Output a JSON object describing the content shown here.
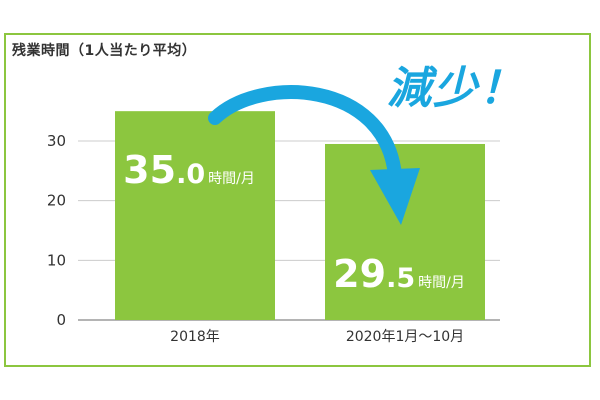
{
  "chart_data": {
    "type": "bar",
    "title": "残業時間（1人当たり平均）",
    "categories": [
      "2018年",
      "2020年1月〜10月"
    ],
    "values": [
      35.0,
      29.5
    ],
    "ylim": [
      0,
      35
    ],
    "yticks": [
      0,
      10,
      20,
      30
    ],
    "unit": "時間/月",
    "annotation": "減少！",
    "grid": true,
    "colors": {
      "bar": "#8cc63f",
      "arrow": "#1aa6df",
      "frame": "#8cc63f",
      "grid": "#cccccc"
    }
  }
}
